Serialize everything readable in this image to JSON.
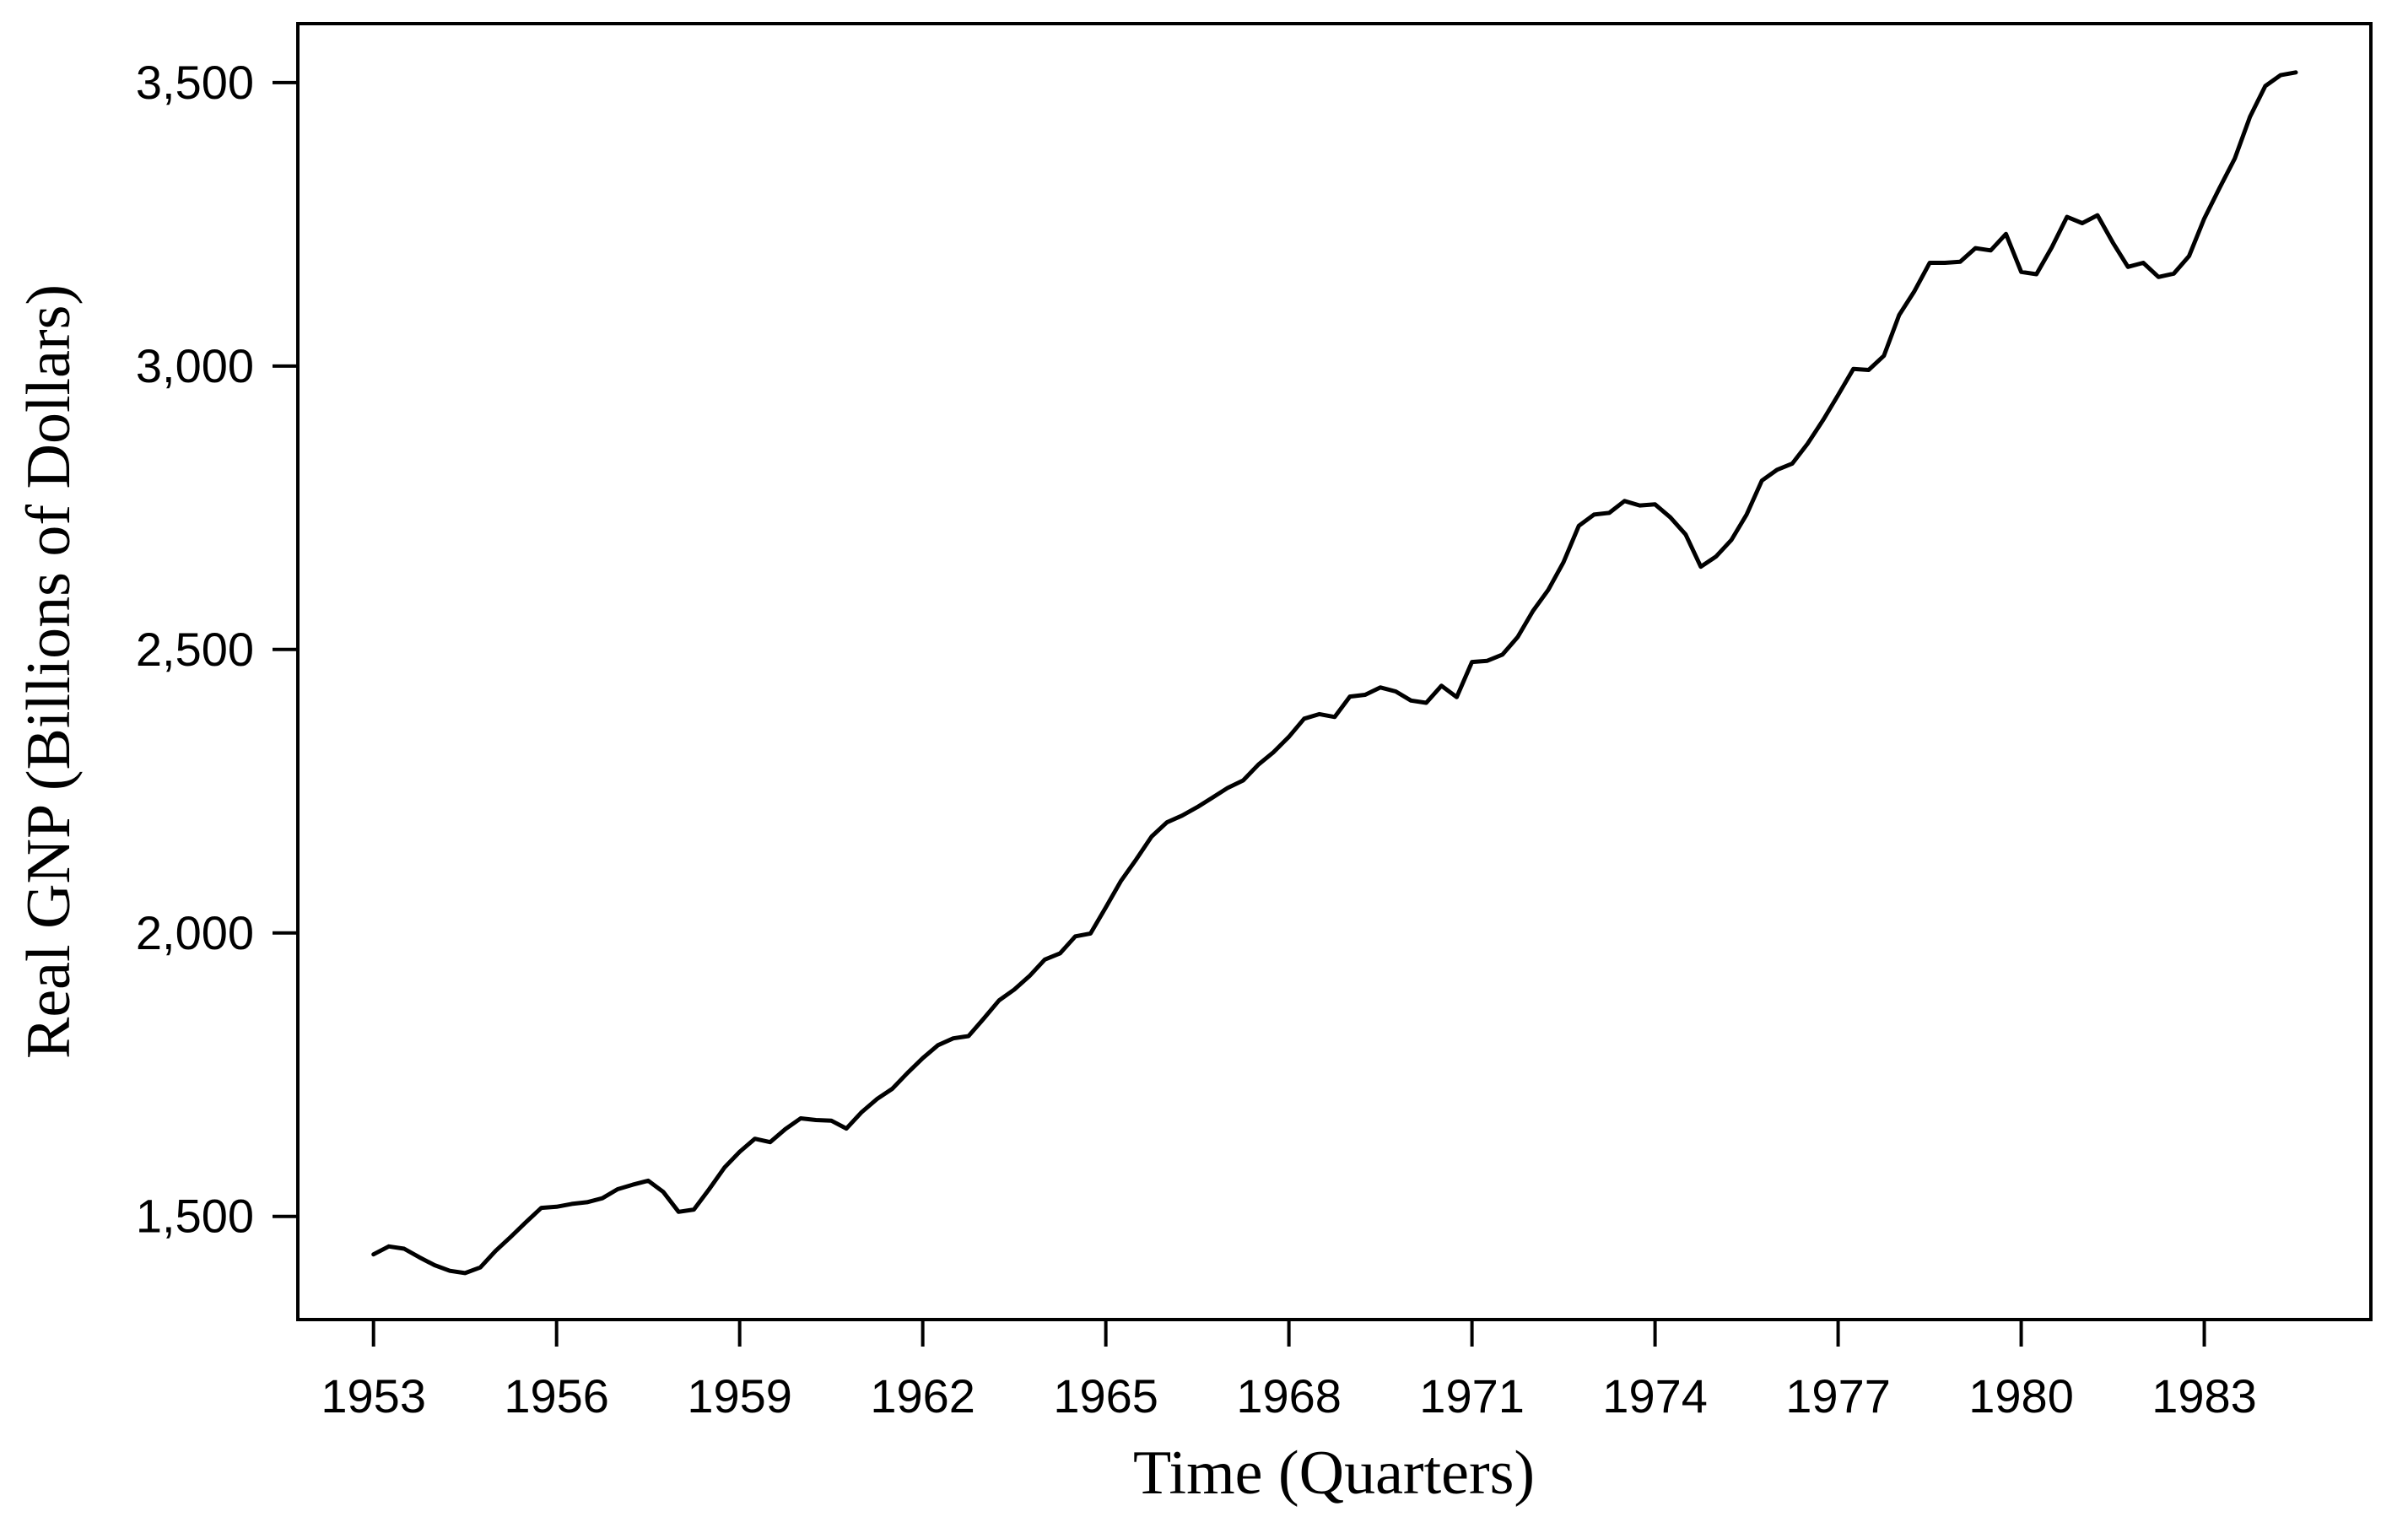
{
  "chart_data": {
    "type": "line",
    "title": "",
    "xlabel": "Time (Quarters)",
    "ylabel": "Real GNP (Billions of Dollars)",
    "background_color": "#ffffff",
    "line_color": "#000000",
    "grid": false,
    "legend": false,
    "x_tick_years": [
      1953,
      1956,
      1959,
      1962,
      1965,
      1968,
      1971,
      1974,
      1977,
      1980,
      1983
    ],
    "y_ticks": [
      1500,
      2000,
      2500,
      3000,
      3500
    ],
    "y_tick_labels": [
      "1,500",
      "2,000",
      "2,500",
      "3,000",
      "3,500"
    ],
    "xlim": [
      1951.76,
      1985.73
    ],
    "ylim": [
      1318,
      3604
    ],
    "x_start": 1953.0,
    "x_step_years": 0.25,
    "period_range": "1953Q1 to 1984Q3",
    "series": [
      {
        "name": "Real GNP",
        "values": [
          1433,
          1447,
          1443,
          1428,
          1414,
          1404,
          1400,
          1410,
          1439,
          1464,
          1490,
          1515,
          1517,
          1522,
          1525,
          1532,
          1548,
          1556,
          1563,
          1543,
          1508,
          1512,
          1548,
          1586,
          1614,
          1637,
          1631,
          1654,
          1673,
          1670,
          1669,
          1655,
          1684,
          1707,
          1725,
          1753,
          1779,
          1802,
          1814,
          1818,
          1849,
          1881,
          1900,
          1924,
          1953,
          1964,
          1994,
          1999,
          2045,
          2092,
          2130,
          2170,
          2195,
          2207,
          2222,
          2239,
          2256,
          2269,
          2297,
          2319,
          2346,
          2378,
          2386,
          2381,
          2417,
          2420,
          2433,
          2426,
          2410,
          2406,
          2436,
          2416,
          2478,
          2480,
          2491,
          2522,
          2568,
          2605,
          2654,
          2718,
          2738,
          2741,
          2762,
          2754,
          2756,
          2733,
          2703,
          2646,
          2664,
          2693,
          2738,
          2798,
          2817,
          2828,
          2863,
          2904,
          2949,
          2995,
          2993,
          3018,
          3090,
          3132,
          3182,
          3182,
          3184,
          3208,
          3204,
          3233,
          3166,
          3162,
          3209,
          3263,
          3252,
          3266,
          3218,
          3175,
          3182,
          3157,
          3163,
          3194,
          3260,
          3314,
          3366,
          3440,
          3494,
          3513,
          3518
        ]
      }
    ]
  }
}
